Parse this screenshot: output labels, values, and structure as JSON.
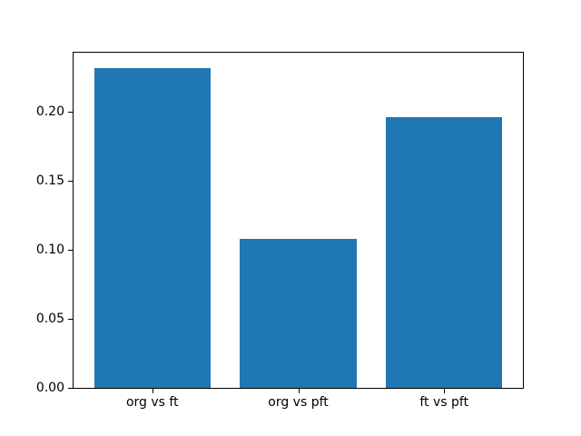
{
  "chart_data": {
    "type": "bar",
    "categories": [
      "org vs ft",
      "org vs pft",
      "ft vs pft"
    ],
    "values": [
      0.232,
      0.108,
      0.196
    ],
    "title": "",
    "xlabel": "",
    "ylabel": "",
    "ylim": [
      0,
      0.243
    ],
    "yticks": [
      0.0,
      0.05,
      0.1,
      0.15,
      0.2
    ],
    "ytick_labels": [
      "0.00",
      "0.05",
      "0.10",
      "0.15",
      "0.20"
    ],
    "bar_color": "#1f77b4",
    "axes_edge_color": "#000000",
    "background_color": "#ffffff",
    "grid": false,
    "legend": null
  }
}
